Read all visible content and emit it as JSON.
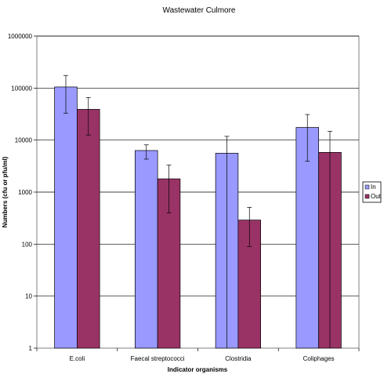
{
  "chart_data": {
    "type": "bar",
    "title": "Wastewater Culmore",
    "xlabel": "Indicator organisms",
    "ylabel": "Numbers (cfu or pfu/ml)",
    "yscale": "log",
    "ylim": [
      1,
      1000000
    ],
    "yticks": [
      "1000000",
      "100000",
      "10000",
      "1000",
      "100",
      "10",
      "1"
    ],
    "categories": [
      "E.coli",
      "Faecal streptococci",
      "Clostridia",
      "Coliphages"
    ],
    "series": [
      {
        "name": "In",
        "color": "#9999ff",
        "values": [
          105000,
          6300,
          5600,
          17500
        ],
        "error_low": [
          33000,
          4300,
          1,
          3900
        ],
        "error_high": [
          175000,
          8100,
          11800,
          31000
        ]
      },
      {
        "name": "Out",
        "color": "#993366",
        "values": [
          39000,
          1800,
          290,
          5800
        ],
        "error_low": [
          12500,
          400,
          90,
          1
        ],
        "error_high": [
          66000,
          3300,
          510,
          14800
        ]
      }
    ],
    "grid": true,
    "legend_position": "right"
  }
}
